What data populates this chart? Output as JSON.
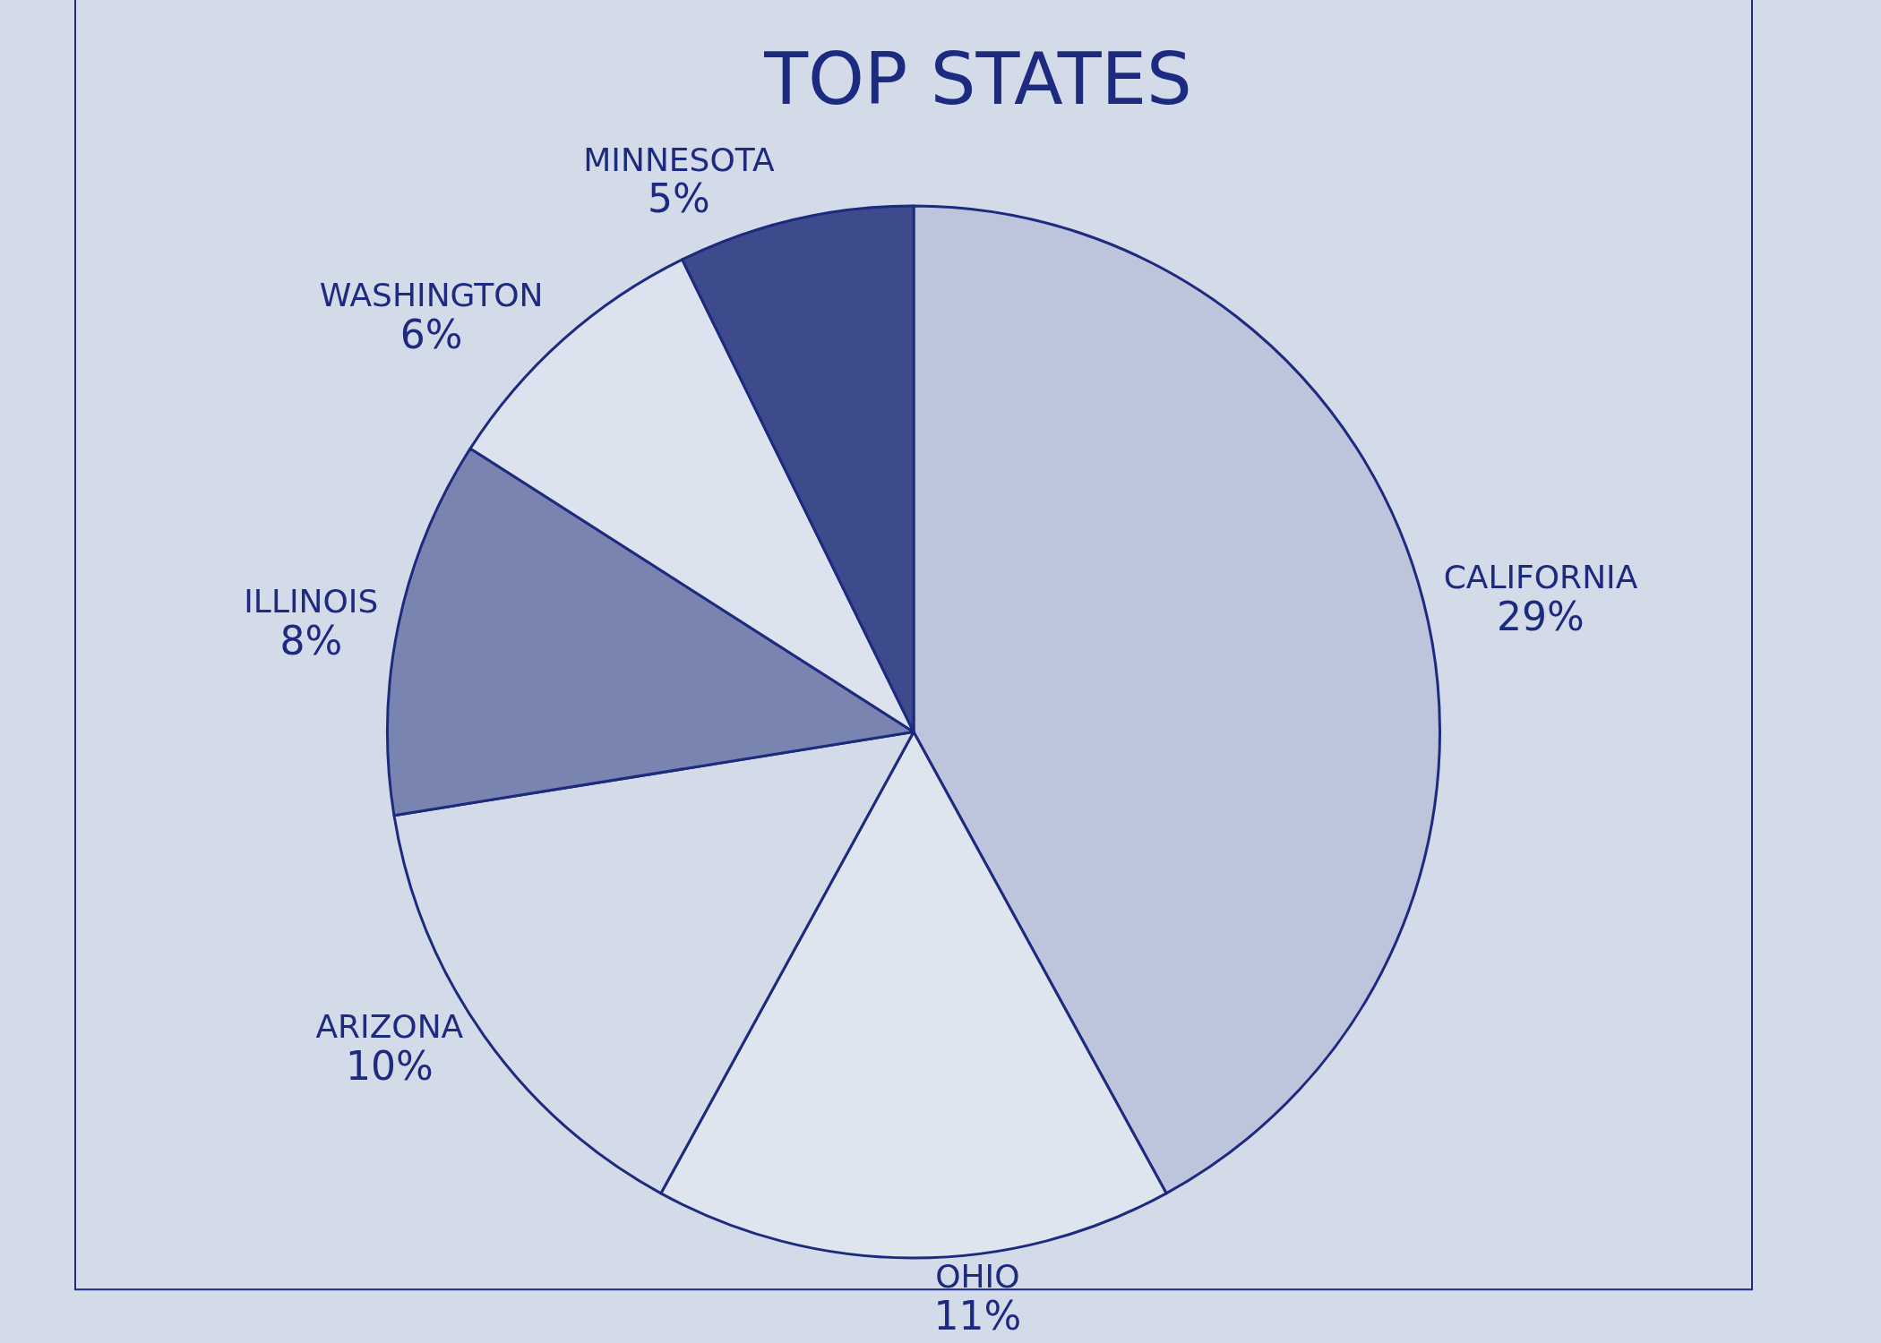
{
  "chart_data": {
    "type": "pie",
    "title": "TOP STATES",
    "categories": [
      "CALIFORNIA",
      "OHIO",
      "ARIZONA",
      "ILLINOIS",
      "WASHINGTON",
      "MINNESOTA"
    ],
    "values": [
      29,
      11,
      10,
      8,
      6,
      5
    ],
    "value_labels": [
      "29%",
      "11%",
      "10%",
      "8%",
      "6%",
      "5%"
    ],
    "colors": [
      "#bcc5dc",
      "#dfe5ef",
      "#d3dbe8",
      "#7a84b0",
      "#dce3ee",
      "#3d4a8c"
    ],
    "legend": false
  }
}
